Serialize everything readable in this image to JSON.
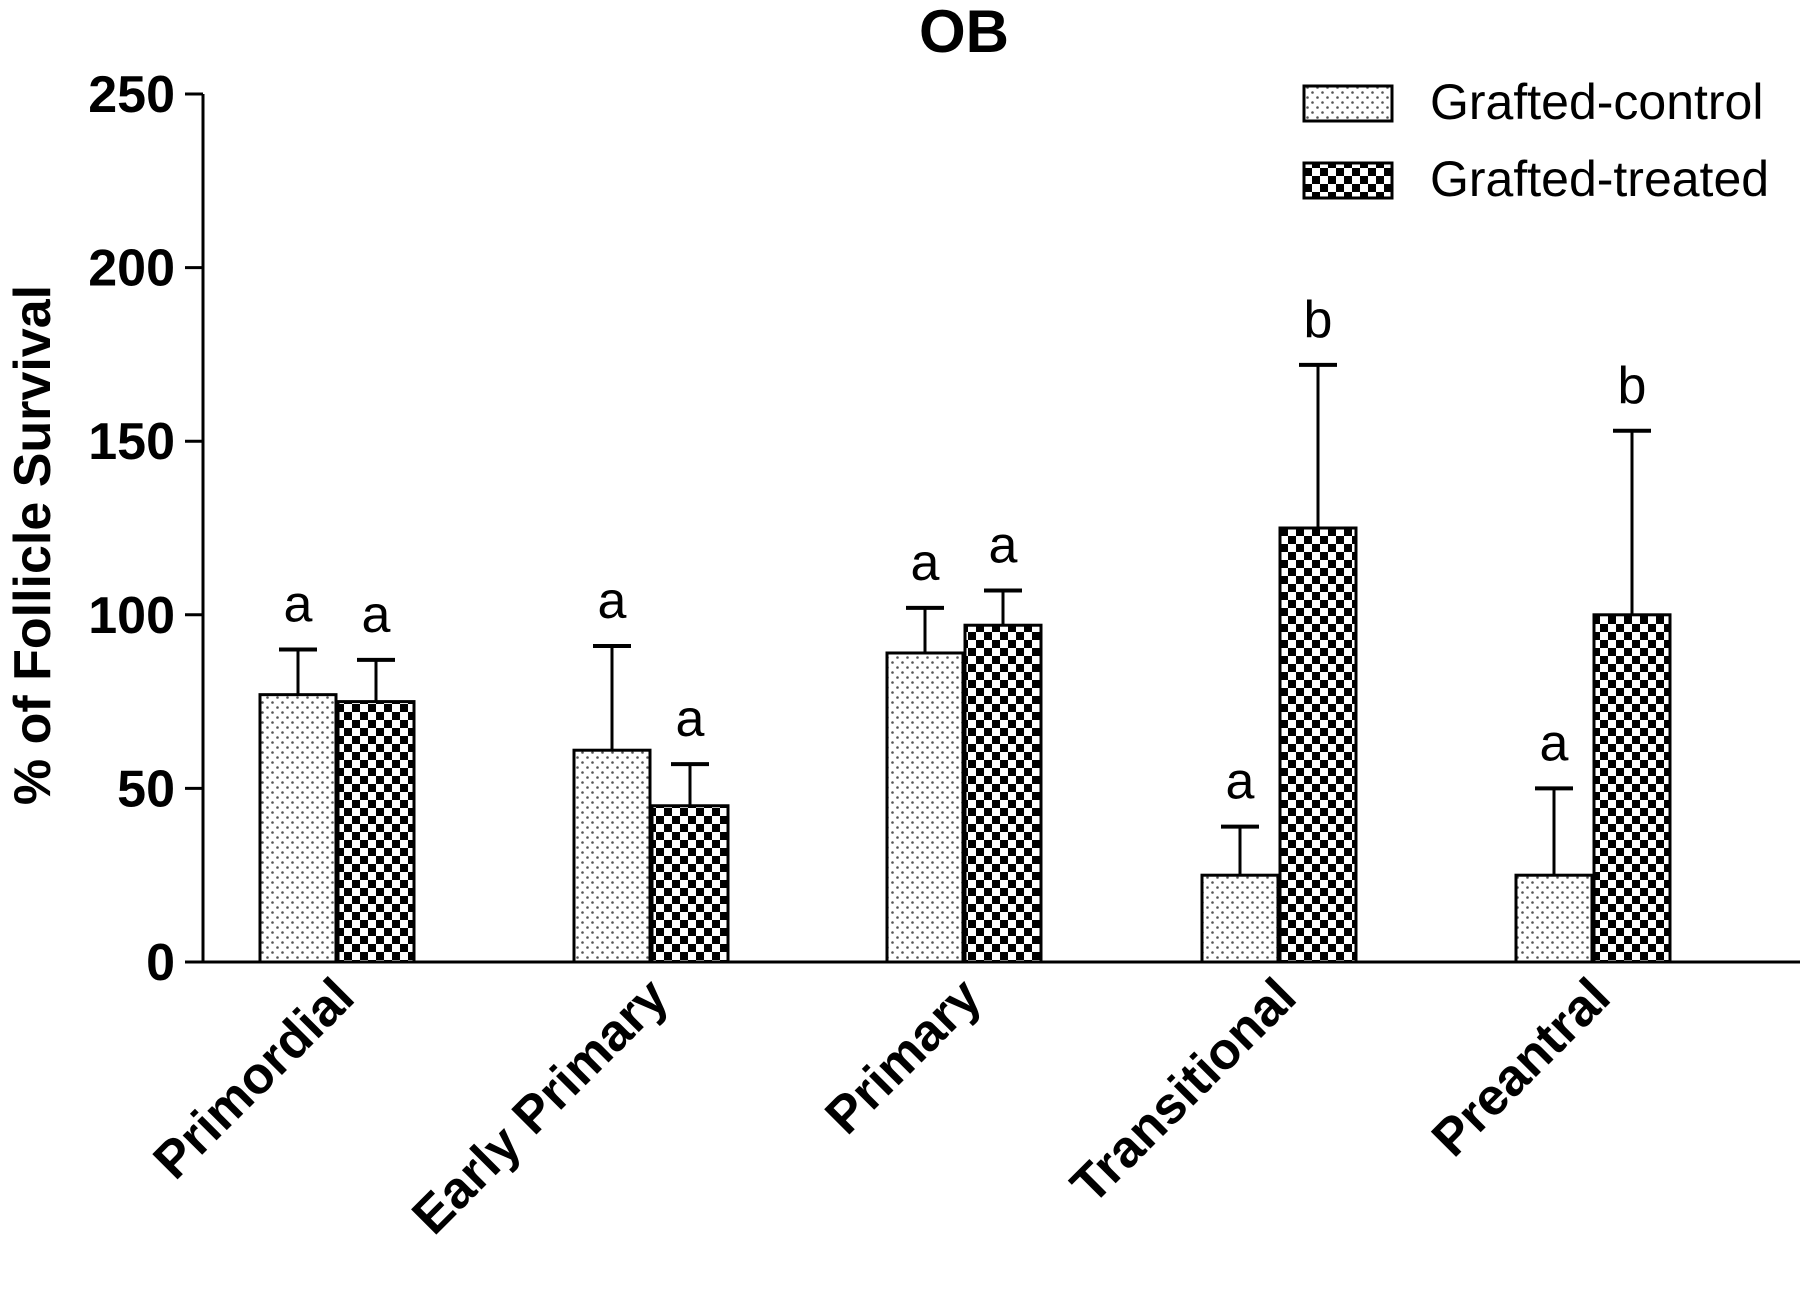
{
  "chart_data": {
    "type": "bar",
    "title": "OB",
    "xlabel": "",
    "ylabel": "% of Follicle Survival",
    "ylim": [
      0,
      250
    ],
    "yticks": [
      "0",
      "50",
      "100",
      "150",
      "200",
      "250"
    ],
    "categories": [
      "Primordial",
      "Early Primary",
      "Primary",
      "Transitional",
      "Preantral"
    ],
    "series": [
      {
        "name": "Grafted-control",
        "pattern": "dots",
        "values": [
          77,
          61,
          89,
          25,
          25
        ],
        "errors": [
          13,
          30,
          13,
          14,
          25
        ],
        "significance": [
          "a",
          "a",
          "a",
          "a",
          "a"
        ]
      },
      {
        "name": "Grafted-treated",
        "pattern": "checker",
        "values": [
          75,
          45,
          97,
          125,
          100
        ],
        "errors": [
          12,
          12,
          10,
          47,
          53
        ],
        "significance": [
          "a",
          "a",
          "a",
          "b",
          "b"
        ]
      }
    ],
    "legend_position": "top-right",
    "grid": false,
    "colors": {
      "axis": "#000000",
      "bar_fill": "#ffffff",
      "pattern": "#000000"
    }
  }
}
